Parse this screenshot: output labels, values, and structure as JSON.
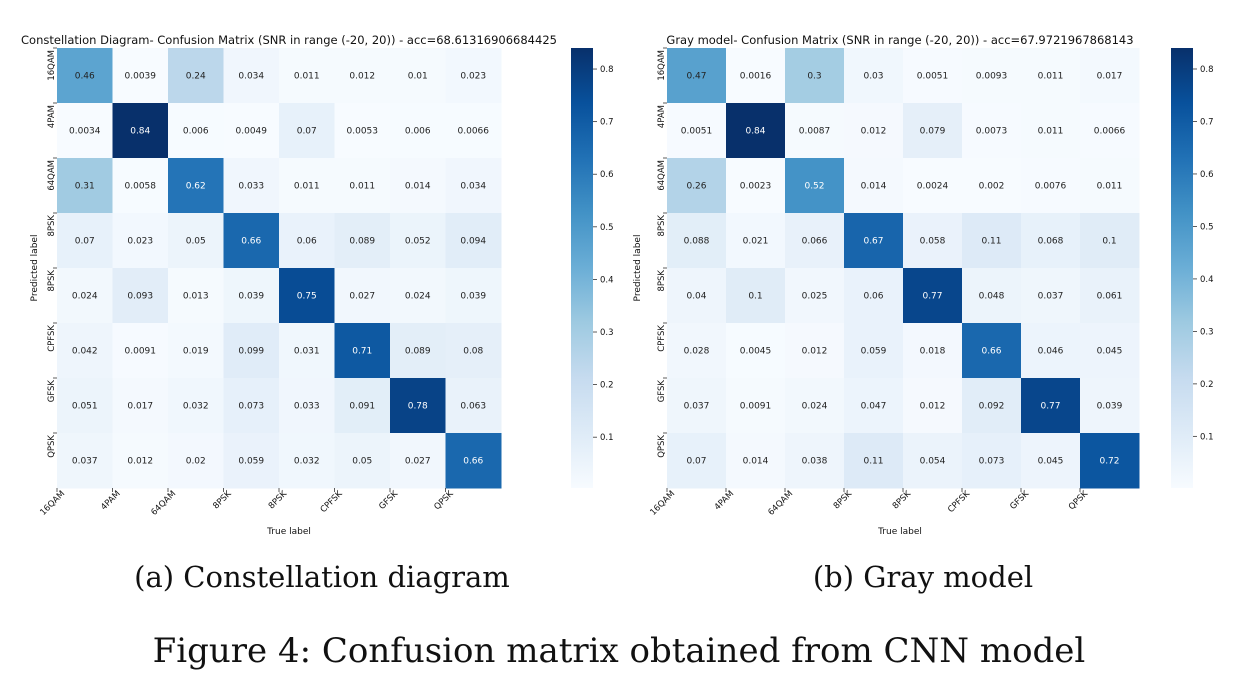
{
  "figure": {
    "caption": "Figure 4: Confusion matrix obtained from CNN model",
    "subcaption_a": "(a) Constellation diagram",
    "subcaption_b": "(b) Gray model"
  },
  "colors": {
    "cmap_low": "#f7fbff",
    "cmap_high": "#08306b",
    "cmap_stops": [
      "#f7fbff",
      "#deebf7",
      "#c6dbef",
      "#9ecae1",
      "#6baed6",
      "#4292c6",
      "#2171b5",
      "#08519c",
      "#08306b"
    ]
  },
  "chart_data": [
    {
      "type": "heatmap",
      "title": "Constellation Diagram- Confusion Matrix (SNR in range (-20, 20)) - acc=68.61316906684425",
      "xlabel": "True label",
      "ylabel": "Predicted label",
      "x_categories": [
        "16QAM",
        "4PAM",
        "64QAM",
        "8PSK",
        "8PSK",
        "CPFSK",
        "GFSK",
        "QPSK"
      ],
      "y_categories": [
        "16QAM",
        "4PAM",
        "64QAM",
        "8PSK",
        "8PSK",
        "CPFSK",
        "GFSK",
        "QPSK"
      ],
      "value_labels": [
        [
          "0.46",
          "0.0039",
          "0.24",
          "0.034",
          "0.011",
          "0.012",
          "0.01",
          "0.023"
        ],
        [
          "0.0034",
          "0.84",
          "0.006",
          "0.0049",
          "0.07",
          "0.0053",
          "0.006",
          "0.0066"
        ],
        [
          "0.31",
          "0.0058",
          "0.62",
          "0.033",
          "0.011",
          "0.011",
          "0.014",
          "0.034"
        ],
        [
          "0.07",
          "0.023",
          "0.05",
          "0.66",
          "0.06",
          "0.089",
          "0.052",
          "0.094"
        ],
        [
          "0.024",
          "0.093",
          "0.013",
          "0.039",
          "0.75",
          "0.027",
          "0.024",
          "0.039"
        ],
        [
          "0.042",
          "0.0091",
          "0.019",
          "0.099",
          "0.031",
          "0.71",
          "0.089",
          "0.08"
        ],
        [
          "0.051",
          "0.017",
          "0.032",
          "0.073",
          "0.033",
          "0.091",
          "0.78",
          "0.063"
        ],
        [
          "0.037",
          "0.012",
          "0.02",
          "0.059",
          "0.032",
          "0.05",
          "0.027",
          "0.66"
        ]
      ],
      "colorbar": {
        "range": [
          0.0034,
          0.84
        ],
        "ticks": [
          "0.8",
          "0.7",
          "0.6",
          "0.5",
          "0.4",
          "0.3",
          "0.2",
          "0.1"
        ]
      }
    },
    {
      "type": "heatmap",
      "title": "Gray model- Confusion Matrix (SNR in range (-20, 20)) - acc=67.9721967868143",
      "xlabel": "True label",
      "ylabel": "Predicted label",
      "x_categories": [
        "16QAM",
        "4PAM",
        "64QAM",
        "8PSK",
        "8PSK",
        "CPFSK",
        "GFSK",
        "QPSK"
      ],
      "y_categories": [
        "16QAM",
        "4PAM",
        "64QAM",
        "8PSK",
        "8PSK",
        "CPFSK",
        "GFSK",
        "QPSK"
      ],
      "value_labels": [
        [
          "0.47",
          "0.0016",
          "0.3",
          "0.03",
          "0.0051",
          "0.0093",
          "0.011",
          "0.017"
        ],
        [
          "0.0051",
          "0.84",
          "0.0087",
          "0.012",
          "0.079",
          "0.0073",
          "0.011",
          "0.0066"
        ],
        [
          "0.26",
          "0.0023",
          "0.52",
          "0.014",
          "0.0024",
          "0.002",
          "0.0076",
          "0.011"
        ],
        [
          "0.088",
          "0.021",
          "0.066",
          "0.67",
          "0.058",
          "0.11",
          "0.068",
          "0.1"
        ],
        [
          "0.04",
          "0.1",
          "0.025",
          "0.06",
          "0.77",
          "0.048",
          "0.037",
          "0.061"
        ],
        [
          "0.028",
          "0.0045",
          "0.012",
          "0.059",
          "0.018",
          "0.66",
          "0.046",
          "0.045"
        ],
        [
          "0.037",
          "0.0091",
          "0.024",
          "0.047",
          "0.012",
          "0.092",
          "0.77",
          "0.039"
        ],
        [
          "0.07",
          "0.014",
          "0.038",
          "0.11",
          "0.054",
          "0.073",
          "0.045",
          "0.72"
        ]
      ],
      "colorbar": {
        "range": [
          0.0016,
          0.84
        ],
        "ticks": [
          "0.8",
          "0.7",
          "0.6",
          "0.5",
          "0.4",
          "0.3",
          "0.2",
          "0.1"
        ]
      }
    }
  ]
}
